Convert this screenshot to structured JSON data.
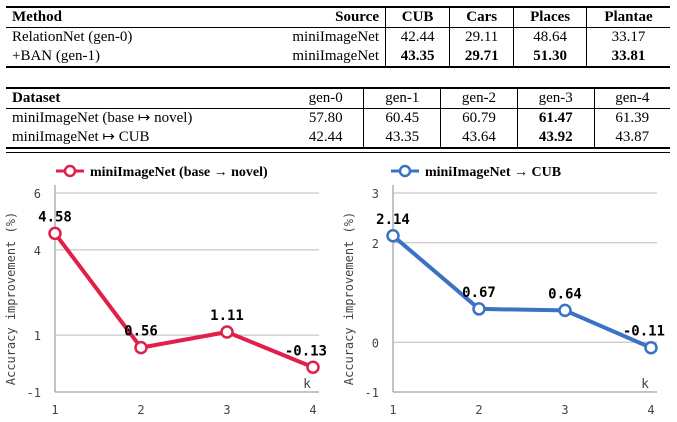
{
  "table1": {
    "headers": [
      "Method",
      "Source",
      "CUB",
      "Cars",
      "Places",
      "Plantae"
    ],
    "rows": [
      {
        "method": "RelationNet (gen-0)",
        "source": "miniImageNet",
        "values": [
          "42.44",
          "29.11",
          "48.64",
          "33.17"
        ],
        "bold": [
          false,
          false,
          false,
          false
        ]
      },
      {
        "method": "+BAN (gen-1)",
        "source": "miniImageNet",
        "values": [
          "43.35",
          "29.71",
          "51.30",
          "33.81"
        ],
        "bold": [
          true,
          true,
          true,
          true
        ]
      }
    ]
  },
  "table2": {
    "headers": [
      "Dataset",
      "gen-0",
      "gen-1",
      "gen-2",
      "gen-3",
      "gen-4"
    ],
    "rows": [
      {
        "dataset": "miniImageNet (base ↦ novel)",
        "values": [
          "57.80",
          "60.45",
          "60.79",
          "61.47",
          "61.39"
        ],
        "bold": [
          false,
          false,
          false,
          true,
          false
        ]
      },
      {
        "dataset": "miniImageNet ↦ CUB",
        "values": [
          "42.44",
          "43.35",
          "43.64",
          "43.92",
          "43.87"
        ],
        "bold": [
          false,
          false,
          false,
          true,
          false
        ]
      }
    ]
  },
  "chart_data": [
    {
      "type": "line",
      "legend": "miniImageNet (base → novel)",
      "color": "#e0204a",
      "x": [
        1,
        2,
        3,
        4
      ],
      "y": [
        4.58,
        0.56,
        1.11,
        -0.13
      ],
      "labels": [
        "4.58",
        "0.56",
        "1.11",
        "-0.13"
      ],
      "ylabel": "Accuracy improvement (%)",
      "xlabel": "k",
      "yticks": [
        -1,
        1,
        4,
        6
      ],
      "xticks": [
        1,
        2,
        3,
        4
      ],
      "ylim": [
        -1,
        6
      ],
      "xlim": [
        1,
        4
      ]
    },
    {
      "type": "line",
      "legend": "miniImageNet → CUB",
      "color": "#3a72c4",
      "x": [
        1,
        2,
        3,
        4
      ],
      "y": [
        2.14,
        0.67,
        0.64,
        -0.11
      ],
      "labels": [
        "2.14",
        "0.67",
        "0.64",
        "-0.11"
      ],
      "ylabel": "Accuracy improvement (%)",
      "xlabel": "k",
      "yticks": [
        -1,
        0,
        2,
        3
      ],
      "xticks": [
        1,
        2,
        3,
        4
      ],
      "ylim": [
        -1,
        3
      ],
      "xlim": [
        1,
        4
      ]
    }
  ]
}
